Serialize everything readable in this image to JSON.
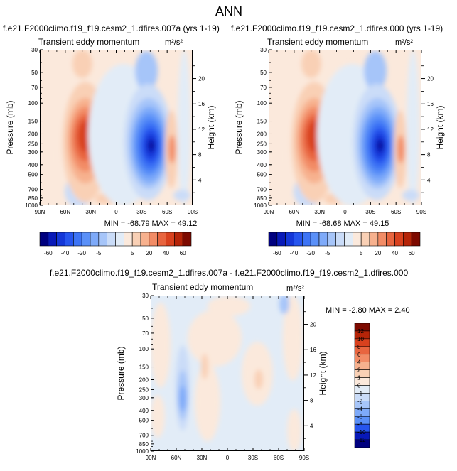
{
  "page_title": "ANN",
  "units_label": "m²/s²",
  "chart_data": [
    {
      "id": "panel_a",
      "type": "contour",
      "title": "f.e21.F2000climo.f19_f19.cesm2_1.dfires.007a (yrs 1-19)",
      "subtitle": "Transient eddy momentum",
      "units": "m²/s²",
      "xlabel": "",
      "ylabel": "Pressure (mb)",
      "ylabel_right": "Height (km)",
      "x_ticks": [
        "90N",
        "60N",
        "30N",
        "0",
        "30S",
        "60S",
        "90S"
      ],
      "y_ticks": [
        "30",
        "50",
        "70",
        "100",
        "150",
        "200",
        "250",
        "300",
        "400",
        "500",
        "700",
        "850",
        "1000"
      ],
      "height_ticks": [
        "4",
        "8",
        "12",
        "16",
        "20"
      ],
      "stats": "MIN = -68.79   MAX = 49.12",
      "min": -68.79,
      "max": 49.12
    },
    {
      "id": "panel_b",
      "type": "contour",
      "title": "f.e21.F2000climo.f19_f19.cesm2_1.dfires.000 (yrs 1-19)",
      "subtitle": "Transient eddy momentum",
      "units": "m²/s²",
      "xlabel": "",
      "ylabel": "Pressure (mb)",
      "ylabel_right": "Height (km)",
      "x_ticks": [
        "90N",
        "60N",
        "30N",
        "0",
        "30S",
        "60S",
        "90S"
      ],
      "y_ticks": [
        "30",
        "50",
        "70",
        "100",
        "150",
        "200",
        "250",
        "300",
        "400",
        "500",
        "700",
        "850",
        "1000"
      ],
      "height_ticks": [
        "4",
        "8",
        "12",
        "16",
        "20"
      ],
      "stats": "MIN = -68.68   MAX = 49.15",
      "min": -68.68,
      "max": 49.15
    },
    {
      "id": "panel_c",
      "type": "contour",
      "title": "f.e21.F2000climo.f19_f19.cesm2_1.dfires.007a - f.e21.F2000climo.f19_f19.cesm2_1.dfires.000",
      "subtitle": "Transient eddy momentum",
      "units": "m²/s²",
      "xlabel": "",
      "ylabel": "Pressure (mb)",
      "ylabel_right": "Height (km)",
      "x_ticks": [
        "90N",
        "60N",
        "30N",
        "0",
        "30S",
        "60S",
        "90S"
      ],
      "y_ticks": [
        "30",
        "50",
        "70",
        "100",
        "150",
        "200",
        "250",
        "300",
        "400",
        "500",
        "700",
        "850",
        "1000"
      ],
      "height_ticks": [
        "4",
        "8",
        "12",
        "16",
        "20"
      ],
      "stats": "MIN =  -2.80   MAX =  2.40",
      "min": -2.8,
      "max": 2.4
    }
  ],
  "colorbar_main": {
    "labels": [
      "-60",
      "-40",
      "-20",
      "-5",
      "5",
      "20",
      "40",
      "60"
    ],
    "colors": [
      "#00007f",
      "#0819b8",
      "#1437d8",
      "#2655ee",
      "#3d74f5",
      "#5a90f8",
      "#7eaaf9",
      "#a6c5f9",
      "#cadcf8",
      "#e2ecf7",
      "#fbe9dc",
      "#f9d0b5",
      "#f7b18e",
      "#f28c66",
      "#e8653f",
      "#d8411e",
      "#b52408",
      "#7d0a00"
    ]
  },
  "colorbar_diff": {
    "labels": [
      "12",
      "10",
      "8",
      "6",
      "4",
      "2",
      "1",
      "0",
      "-1",
      "-2",
      "-4",
      "-6",
      "-8",
      "-10",
      "-12"
    ],
    "colors": [
      "#7d0a00",
      "#b52408",
      "#d8411e",
      "#e8653f",
      "#f28c66",
      "#f7b18e",
      "#f9d0b5",
      "#fbe9dc",
      "#e2ecf7",
      "#cadcf8",
      "#a6c5f9",
      "#7eaaf9",
      "#5a90f8",
      "#2655ee",
      "#0819b8",
      "#00007f"
    ]
  }
}
